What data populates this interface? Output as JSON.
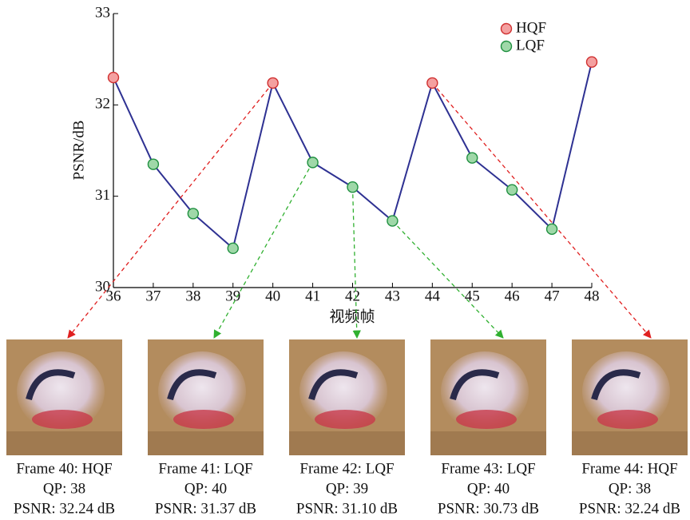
{
  "chart_data": {
    "type": "line",
    "x": [
      36,
      37,
      38,
      39,
      40,
      41,
      42,
      43,
      44,
      45,
      46,
      47,
      48
    ],
    "line_color": "#2e3192",
    "series": [
      {
        "name": "HQF",
        "color": "#f4a0a0",
        "values": [
          32.3,
          null,
          null,
          null,
          32.24,
          null,
          null,
          null,
          32.24,
          null,
          null,
          null,
          32.47
        ]
      },
      {
        "name": "LQF",
        "color": "#9fd8a8",
        "values": [
          null,
          31.35,
          30.81,
          30.43,
          null,
          31.37,
          31.1,
          30.73,
          null,
          31.42,
          31.07,
          30.64,
          null
        ]
      }
    ],
    "xlim": [
      36,
      48
    ],
    "xticks": [
      36,
      37,
      38,
      39,
      40,
      41,
      42,
      43,
      44,
      45,
      46,
      47,
      48
    ],
    "ylim": [
      30,
      33
    ],
    "yticks": [
      30,
      31,
      32,
      33
    ],
    "ylabel": "PSNR/dB",
    "xlabel": "视频帧",
    "legend": "upper right"
  },
  "panels": [
    {
      "title": "Frame 40: HQF",
      "qp": "QP: 38",
      "psnr": "PSNR: 32.24 dB"
    },
    {
      "title": "Frame 41: LQF",
      "qp": "QP: 40",
      "psnr": "PSNR: 31.37 dB"
    },
    {
      "title": "Frame 42: LQF",
      "qp": "QP: 39",
      "psnr": "PSNR: 31.10 dB"
    },
    {
      "title": "Frame 43: LQF",
      "qp": "QP: 40",
      "psnr": "PSNR: 30.73 dB"
    },
    {
      "title": "Frame 44: HQF",
      "qp": "QP: 38",
      "psnr": "PSNR: 32.24 dB"
    }
  ]
}
